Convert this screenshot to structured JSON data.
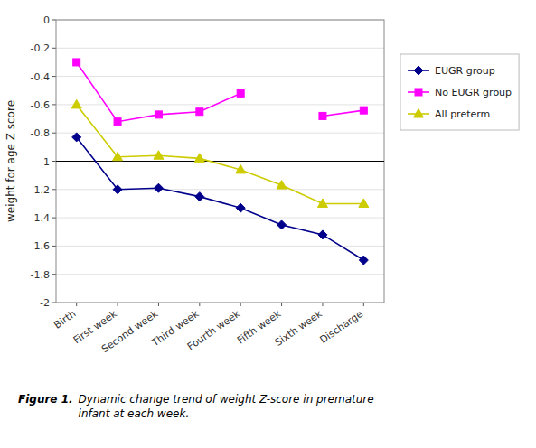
{
  "chart_data": {
    "type": "line",
    "y_label": "weight for age Z score",
    "categories": [
      "Birth",
      "First week",
      "Second week",
      "Third week",
      "Fourth week",
      "Fifth week",
      "Sixth week",
      "Discharge"
    ],
    "series": [
      {
        "name": "EUGR group",
        "color": "#00008B",
        "marker": "diamond",
        "values": [
          -0.83,
          -1.2,
          -1.19,
          -1.25,
          -1.33,
          -1.45,
          -1.52,
          -1.7
        ]
      },
      {
        "name": "No EUGR group",
        "color": "#FF00FF",
        "marker": "square",
        "values": [
          -0.3,
          -0.72,
          -0.67,
          -0.65,
          -0.52,
          null,
          -0.68,
          -0.64
        ]
      },
      {
        "name": "All preterm",
        "color": "#CCCC00",
        "marker": "triangle",
        "values": [
          -0.6,
          -0.97,
          -0.96,
          -0.98,
          -1.06,
          -1.17,
          -1.3,
          -1.3
        ]
      }
    ],
    "ylim": [
      -2.0,
      0.0
    ],
    "yticks": [
      0,
      -0.2,
      -0.4,
      -0.6,
      -0.8,
      -1,
      -1.2,
      -1.4,
      -1.6,
      -1.8,
      -2
    ],
    "reference_line": -1,
    "grid": true,
    "legend": "right",
    "figure_label": "Figure 1.",
    "caption": "Dynamic change trend of weight Z-score in premature\ninfant at each week."
  }
}
